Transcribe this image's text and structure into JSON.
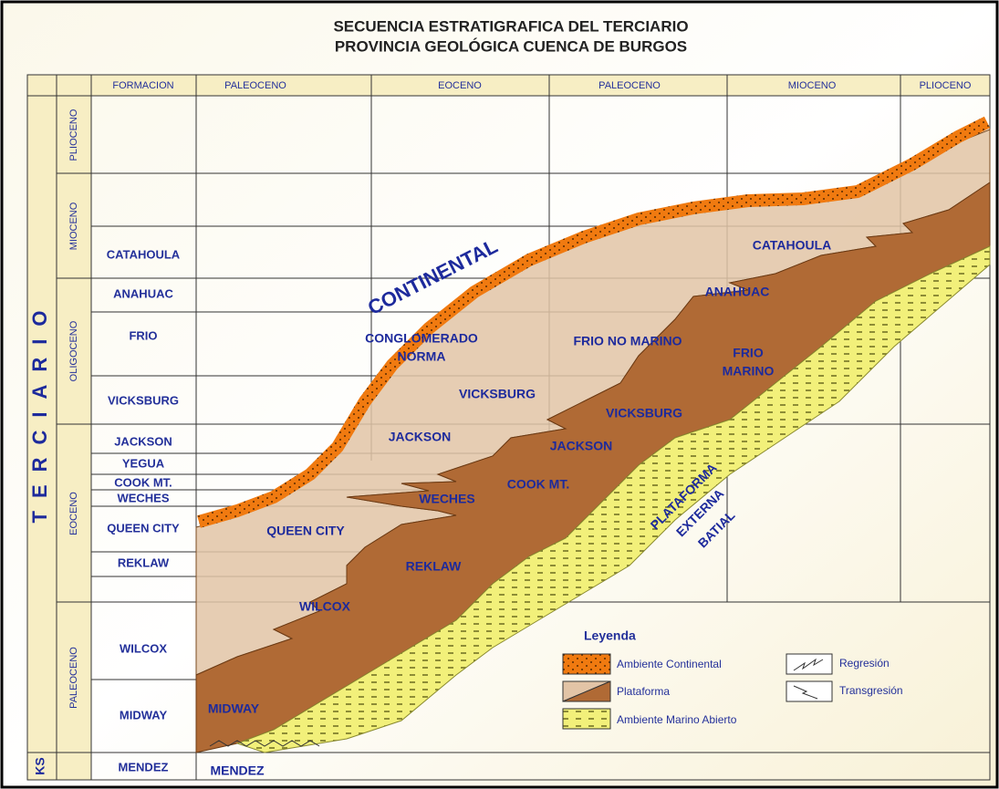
{
  "title": [
    "SECUENCIA ESTRATIGRAFICA DEL TERCIARIO",
    "PROVINCIA GEOLÓGICA CUENCA DE BURGOS"
  ],
  "side": {
    "group": "TERCIARIO",
    "ks": "KS"
  },
  "epochs": [
    "PLIOCENO",
    "MIOCENO",
    "OLIGOCENO",
    "EOCENO",
    "PALEOCENO"
  ],
  "header": [
    "FORMACION",
    "PALEOCENO",
    "EOCENO",
    "PALEOCENO",
    "MIOCENO",
    "PLIOCENO"
  ],
  "formations": [
    "CATAHOULA",
    "ANAHUAC",
    "FRIO",
    "VICKSBURG",
    "JACKSON",
    "YEGUA",
    "COOK MT.",
    "WECHES",
    "QUEEN CITY",
    "REKLAW",
    "WILCOX",
    "MIDWAY",
    "MENDEZ"
  ],
  "diagram_labels": {
    "continental": "CONTINENTAL",
    "conglomerado": [
      "CONGLOMERADO",
      "NORMA"
    ],
    "frio_no_marino": "FRIO NO MARINO",
    "catahoula": "CATAHOULA",
    "anahuac": "ANAHUAC",
    "frio_marino": [
      "FRIO",
      "MARINO"
    ],
    "vicksburg": [
      "VICKSBURG",
      "VICKSBURG"
    ],
    "jackson": [
      "JACKSON",
      "JACKSON"
    ],
    "cook_mt": "COOK MT.",
    "weches": "WECHES",
    "queen_city": "QUEEN CITY",
    "reklaw": "REKLAW",
    "wilcox": "WILCOX",
    "midway": "MIDWAY",
    "mendez": "MENDEZ",
    "plataforma": [
      "PLATAFORMA",
      "EXTERNA",
      "BATIAL"
    ]
  },
  "legend": {
    "title": "Leyenda",
    "items": [
      "Ambiente Continental",
      "Plataforma",
      "Ambiente Marino Abierto"
    ],
    "arrows": [
      "Regresión",
      "Transgresión"
    ]
  }
}
